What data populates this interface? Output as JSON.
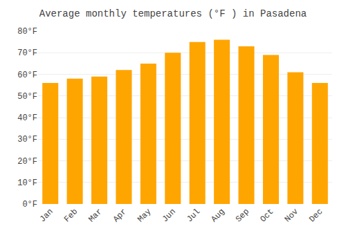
{
  "chart_data": {
    "type": "bar",
    "title": "Average monthly temperatures (°F ) in Pasadena",
    "categories": [
      "Jan",
      "Feb",
      "Mar",
      "Apr",
      "May",
      "Jun",
      "Jul",
      "Aug",
      "Sep",
      "Oct",
      "Nov",
      "Dec"
    ],
    "values": [
      56,
      58,
      59,
      62,
      65,
      70,
      75,
      76,
      73,
      69,
      61,
      56
    ],
    "color": "#FFA500",
    "ylim": [
      0,
      80
    ],
    "yticks": [
      {
        "value": 0,
        "label": "0°F"
      },
      {
        "value": 10,
        "label": "10°F"
      },
      {
        "value": 20,
        "label": "20°F"
      },
      {
        "value": 30,
        "label": "30°F"
      },
      {
        "value": 40,
        "label": "40°F"
      },
      {
        "value": 50,
        "label": "50°F"
      },
      {
        "value": 60,
        "label": "60°F"
      },
      {
        "value": 70,
        "label": "70°F"
      },
      {
        "value": 80,
        "label": "80°F"
      }
    ],
    "grid": true
  }
}
